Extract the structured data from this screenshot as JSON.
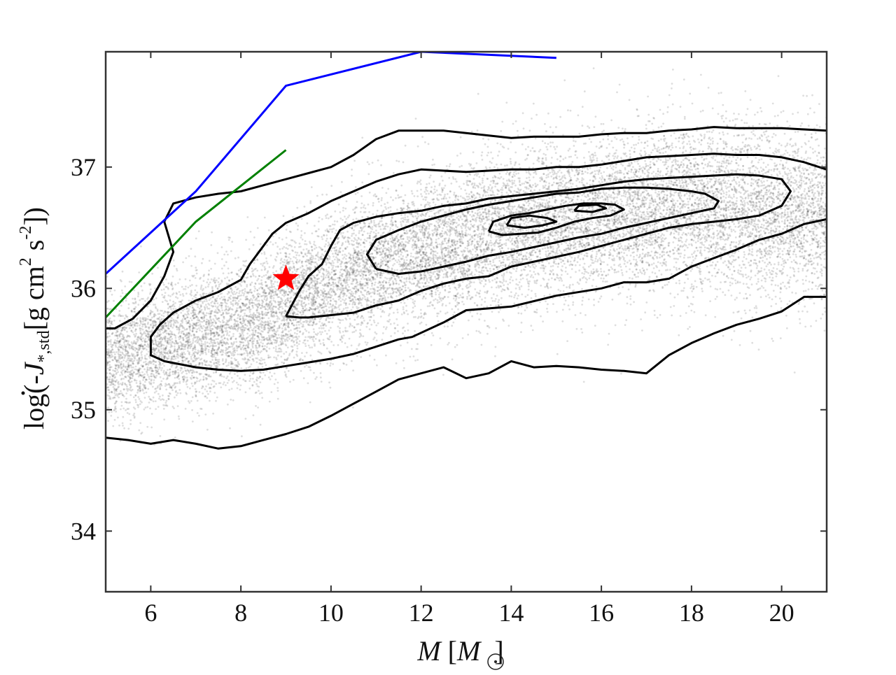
{
  "chart_data": {
    "type": "scatter",
    "title": "",
    "xlabel": "M [M_sun]",
    "ylabel": "log(-J_dot_*,std[g cm^2 s^-2])",
    "x_label_parts": {
      "var": "M",
      "open": " [",
      "unit": "M",
      "close": "]"
    },
    "y_label_parts": {
      "prefix": "log(-",
      "var": "J",
      "sub": "*,std",
      "unit1": "[g cm",
      "exp1": "2",
      "unit2": " s",
      "exp2": "-2",
      "suffix": "])"
    },
    "xlim": [
      5,
      21
    ],
    "ylim": [
      33.5,
      37.95
    ],
    "xticks": [
      6,
      8,
      10,
      12,
      14,
      16,
      18,
      20
    ],
    "yticks": [
      34,
      35,
      36,
      37
    ],
    "xtick_labels": [
      "6",
      "8",
      "10",
      "12",
      "14",
      "16",
      "18",
      "20"
    ],
    "ytick_labels": [
      "34",
      "35",
      "36",
      "37"
    ],
    "grid": false,
    "legend": "none",
    "density_cloud": {
      "description_points_centerline": {
        "x": [
          5,
          6,
          7,
          8,
          9,
          10,
          11,
          12,
          13,
          14,
          15,
          16,
          17,
          18,
          19,
          20,
          21
        ],
        "y": [
          35.4,
          35.5,
          35.6,
          35.7,
          35.85,
          36.05,
          36.2,
          36.3,
          36.4,
          36.5,
          36.55,
          36.6,
          36.65,
          36.65,
          36.65,
          36.6,
          36.6
        ]
      },
      "y_spread": 0.9,
      "color": "#000000"
    },
    "contours": [
      {
        "level": 1,
        "x": [
          5.0,
          5.5,
          6.0,
          6.5,
          7.0,
          7.5,
          8.0,
          8.5,
          9.0,
          9.5,
          10.0,
          10.5,
          11.0,
          11.5,
          12.0,
          12.5,
          13.0,
          13.5,
          14.0,
          14.5,
          15.0,
          15.5,
          16.0,
          16.5,
          17.0,
          17.5,
          18.0,
          18.5,
          19.0,
          19.5,
          20.0,
          20.5,
          21.0
        ],
        "y": [
          34.77,
          34.75,
          34.72,
          34.75,
          34.72,
          34.68,
          34.7,
          34.75,
          34.8,
          34.86,
          34.95,
          35.05,
          35.15,
          35.25,
          35.3,
          35.35,
          35.26,
          35.3,
          35.4,
          35.35,
          35.36,
          35.35,
          35.33,
          35.32,
          35.3,
          35.45,
          35.55,
          35.63,
          35.7,
          35.75,
          35.81,
          35.93,
          35.93
        ]
      },
      {
        "level": 1,
        "x": [
          21.0,
          20.5,
          20.0,
          19.5,
          19.0,
          18.5,
          18.0,
          17.5,
          17.0,
          16.5,
          16.0,
          15.5,
          15.0,
          14.5,
          14.0,
          13.5,
          13.0,
          12.5,
          12.0,
          11.5,
          11.0,
          10.5,
          10.0,
          9.5,
          9.0,
          8.5,
          8.0,
          7.5,
          7.0,
          6.5,
          6.3,
          6.5,
          6.3,
          6.0,
          5.6,
          5.2,
          5.0
        ],
        "y": [
          37.3,
          37.31,
          37.32,
          37.32,
          37.32,
          37.33,
          37.31,
          37.3,
          37.28,
          37.28,
          37.27,
          37.25,
          37.25,
          37.25,
          37.24,
          37.26,
          37.28,
          37.3,
          37.3,
          37.3,
          37.23,
          37.1,
          37.0,
          36.95,
          36.9,
          36.85,
          36.8,
          36.78,
          36.75,
          36.7,
          36.55,
          36.3,
          36.1,
          35.9,
          35.75,
          35.67,
          35.67
        ]
      },
      {
        "level": 2,
        "x": [
          21.0,
          20.5,
          20.0,
          19.5,
          19.0,
          18.5,
          18.0,
          17.5,
          17.0,
          16.5,
          16.0,
          15.5,
          15.0,
          14.5,
          14.0,
          13.5,
          13.0,
          12.5,
          12.0,
          11.5,
          11.0,
          10.5,
          10.0,
          9.5,
          9.0,
          8.7,
          8.5,
          8.2,
          8.0,
          7.5,
          7.0,
          6.5,
          6.2,
          6.0,
          6.0,
          6.3,
          7.0,
          7.5,
          8.0,
          8.5,
          9.0,
          9.5,
          10.0,
          10.5,
          11.0,
          11.5,
          11.8,
          12.5,
          13.0,
          14.0,
          15.0,
          16.0,
          16.5,
          17.0,
          17.5,
          18.0,
          18.5,
          19.0,
          19.5,
          20.0,
          20.5,
          21.0
        ],
        "y": [
          36.98,
          37.04,
          37.08,
          37.1,
          37.1,
          37.11,
          37.1,
          37.09,
          37.08,
          37.05,
          37.02,
          37.0,
          37.0,
          36.98,
          36.98,
          36.97,
          36.96,
          36.97,
          36.98,
          36.94,
          36.88,
          36.8,
          36.72,
          36.62,
          36.54,
          36.45,
          36.35,
          36.2,
          36.07,
          35.97,
          35.9,
          35.8,
          35.7,
          35.6,
          35.45,
          35.4,
          35.35,
          35.33,
          35.32,
          35.33,
          35.36,
          35.39,
          35.42,
          35.46,
          35.52,
          35.58,
          35.6,
          35.72,
          35.82,
          35.85,
          35.94,
          36.0,
          36.05,
          36.05,
          36.08,
          36.18,
          36.25,
          36.32,
          36.4,
          36.45,
          36.53,
          36.57
        ]
      },
      {
        "level": 3,
        "x": [
          9.0,
          9.3,
          9.5,
          10.0,
          10.5,
          11.0,
          11.5,
          12.0,
          12.5,
          13.0,
          13.5,
          14.0,
          14.5,
          15.0,
          15.5,
          16.0,
          16.5,
          17.0,
          17.5,
          18.0,
          18.5,
          19.0,
          19.5,
          20.0,
          20.2,
          20.0,
          19.5,
          19.0,
          18.5,
          18.0,
          17.5,
          17.0,
          16.5,
          16.0,
          15.5,
          15.0,
          14.5,
          14.0,
          13.5,
          13.0,
          12.5,
          12.0,
          11.5,
          11.0,
          10.5,
          10.2,
          10.0,
          9.8,
          9.5,
          9.3,
          9.0
        ],
        "y": [
          35.77,
          35.76,
          35.76,
          35.78,
          35.8,
          35.86,
          35.9,
          35.98,
          36.04,
          36.08,
          36.1,
          36.18,
          36.22,
          36.26,
          36.3,
          36.35,
          36.4,
          36.45,
          36.5,
          36.53,
          36.55,
          36.57,
          36.6,
          36.68,
          36.8,
          36.9,
          36.93,
          36.94,
          36.93,
          36.92,
          36.91,
          36.9,
          36.88,
          36.85,
          36.82,
          36.8,
          36.78,
          36.76,
          36.74,
          36.7,
          36.68,
          36.64,
          36.62,
          36.59,
          36.54,
          36.48,
          36.35,
          36.2,
          36.1,
          35.98,
          35.77
        ]
      },
      {
        "level": 4,
        "x": [
          11.0,
          11.5,
          12.0,
          12.5,
          13.0,
          13.5,
          14.0,
          14.5,
          15.0,
          15.5,
          16.0,
          16.5,
          17.0,
          17.5,
          18.0,
          18.5,
          18.6,
          18.3,
          18.0,
          17.5,
          17.0,
          16.5,
          16.0,
          15.5,
          15.0,
          14.5,
          14.0,
          13.5,
          13.0,
          12.5,
          12.0,
          11.5,
          11.0,
          10.8,
          11.0
        ],
        "y": [
          36.16,
          36.12,
          36.14,
          36.18,
          36.22,
          36.27,
          36.3,
          36.34,
          36.38,
          36.42,
          36.45,
          36.5,
          36.54,
          36.58,
          36.62,
          36.66,
          36.72,
          36.78,
          36.8,
          36.82,
          36.83,
          36.83,
          36.82,
          36.79,
          36.78,
          36.75,
          36.72,
          36.69,
          36.65,
          36.6,
          36.55,
          36.48,
          36.4,
          36.28,
          36.16
        ]
      },
      {
        "level": 5,
        "x": [
          13.5,
          13.8,
          14.2,
          14.6,
          15.0,
          15.4,
          15.8,
          16.2,
          16.5,
          16.3,
          16.0,
          15.6,
          15.2,
          14.8,
          14.4,
          14.0,
          13.6,
          13.5
        ],
        "y": [
          36.47,
          36.44,
          36.45,
          36.46,
          36.5,
          36.55,
          36.58,
          36.6,
          36.65,
          36.69,
          36.7,
          36.7,
          36.68,
          36.65,
          36.62,
          36.6,
          36.55,
          36.47
        ]
      },
      {
        "level": 6,
        "x": [
          13.9,
          14.3,
          14.7,
          15.0,
          14.8,
          14.4,
          14.0,
          13.9
        ],
        "y": [
          36.52,
          36.5,
          36.52,
          36.55,
          36.58,
          36.6,
          36.58,
          36.52
        ]
      },
      {
        "level": 6,
        "x": [
          15.4,
          15.8,
          16.1,
          15.9,
          15.5,
          15.4
        ],
        "y": [
          36.64,
          36.63,
          36.66,
          36.69,
          36.68,
          36.64
        ]
      }
    ],
    "lines": [
      {
        "color": "#0000ff",
        "x": [
          5.0,
          7.0,
          9.0,
          12.0,
          15.0
        ],
        "y": [
          36.12,
          36.8,
          37.67,
          37.95,
          37.9
        ]
      },
      {
        "color": "#008000",
        "x": [
          5.0,
          7.0,
          9.0
        ],
        "y": [
          35.76,
          36.55,
          37.14
        ]
      }
    ],
    "marker": {
      "symbol": "star",
      "color": "#ff0000",
      "x": 9.0,
      "y": 36.08
    }
  }
}
